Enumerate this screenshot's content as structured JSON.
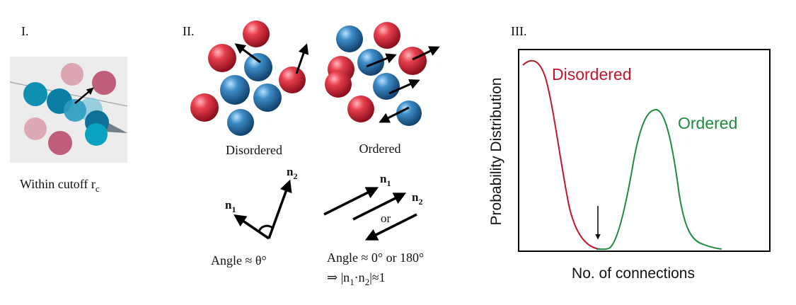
{
  "panel_I": {
    "label": "I.",
    "caption_main": "Within cutoff r",
    "caption_sub": "c"
  },
  "panel_II": {
    "label": "II.",
    "disordered_label": "Disordered",
    "ordered_label": "Ordered",
    "vec_n": "n",
    "sub_1": "1",
    "sub_2": "2",
    "or_label": "or",
    "angle_theta": "Angle ≈ θ°",
    "angle_parallel": "Angle ≈ 0° or 180°",
    "dot_prefix": "⇒ |n",
    "dot_mid": "·n",
    "dot_suffix": "|≈1"
  },
  "panel_III": {
    "label": "III.",
    "xlabel": "No. of connections",
    "ylabel": "Probability Distribution",
    "disordered_label": "Disordered",
    "ordered_label": "Ordered"
  },
  "colors": {
    "red": "#c0162c",
    "green": "#1e8a3e",
    "teal": "#1a8fb0",
    "pink": "#d68d9d"
  }
}
